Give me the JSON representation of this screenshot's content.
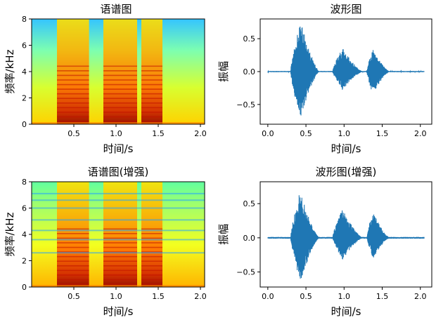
{
  "chart_data": [
    {
      "type": "heatmap",
      "title": "语谱图",
      "xlabel": "时间/s",
      "ylabel": "频率/kHz",
      "xlim": [
        0.0,
        2.05
      ],
      "ylim": [
        0,
        8
      ],
      "xticks": [
        "0.5",
        "1.0",
        "1.5",
        "2.0"
      ],
      "yticks": [
        "0",
        "2",
        "4",
        "6",
        "8"
      ],
      "colormap": "jet",
      "speech_segments_s": [
        [
          0.3,
          0.68
        ],
        [
          0.85,
          1.25
        ],
        [
          1.3,
          1.55
        ]
      ],
      "enhanced": false
    },
    {
      "type": "line",
      "title": "波形图",
      "xlabel": "时间/s",
      "ylabel": "振幅",
      "xlim": [
        -0.1,
        2.15
      ],
      "ylim": [
        -0.8,
        0.8
      ],
      "xticks": [
        "0.0",
        "0.5",
        "1.0",
        "1.5",
        "2.0"
      ],
      "yticks": [
        "−0.5",
        "0.0",
        "0.5"
      ],
      "line_color": "#1f77b4",
      "envelope": {
        "bursts": [
          {
            "t0": 0.3,
            "t1": 0.68,
            "peak_t": 0.43,
            "peak_pos": 0.78,
            "peak_neg": -0.72
          },
          {
            "t0": 0.85,
            "t1": 1.25,
            "peak_t": 0.98,
            "peak_pos": 0.36,
            "peak_neg": -0.28
          },
          {
            "t0": 1.3,
            "t1": 1.6,
            "peak_t": 1.38,
            "peak_pos": 0.35,
            "peak_neg": -0.35
          }
        ],
        "noise_level": 0.008,
        "duration_s": 2.05
      }
    },
    {
      "type": "heatmap",
      "title": "语谱图(增强)",
      "xlabel": "时间/s",
      "ylabel": "频率/kHz",
      "xlim": [
        0.0,
        2.05
      ],
      "ylim": [
        0,
        8
      ],
      "xticks": [
        "0.5",
        "1.0",
        "1.5",
        "2.0"
      ],
      "yticks": [
        "0",
        "2",
        "4",
        "6",
        "8"
      ],
      "colormap": "jet",
      "speech_segments_s": [
        [
          0.3,
          0.68
        ],
        [
          0.85,
          1.25
        ],
        [
          1.3,
          1.55
        ]
      ],
      "enhanced": true
    },
    {
      "type": "line",
      "title": "波形图(增强)",
      "xlabel": "时间/s",
      "ylabel": "振幅",
      "xlim": [
        -0.1,
        2.15
      ],
      "ylim": [
        -0.72,
        0.82
      ],
      "xticks": [
        "0.0",
        "0.5",
        "1.0",
        "1.5",
        "2.0"
      ],
      "yticks": [
        "−0.5",
        "0.0",
        "0.5"
      ],
      "line_color": "#1f77b4",
      "envelope": {
        "bursts": [
          {
            "t0": 0.3,
            "t1": 0.68,
            "peak_t": 0.43,
            "peak_pos": 0.7,
            "peak_neg": -0.65
          },
          {
            "t0": 0.85,
            "t1": 1.25,
            "peak_t": 0.98,
            "peak_pos": 0.42,
            "peak_neg": -0.32
          },
          {
            "t0": 1.3,
            "t1": 1.6,
            "peak_t": 1.38,
            "peak_pos": 0.38,
            "peak_neg": -0.3
          }
        ],
        "noise_level": 0.012,
        "duration_s": 2.05
      }
    }
  ]
}
